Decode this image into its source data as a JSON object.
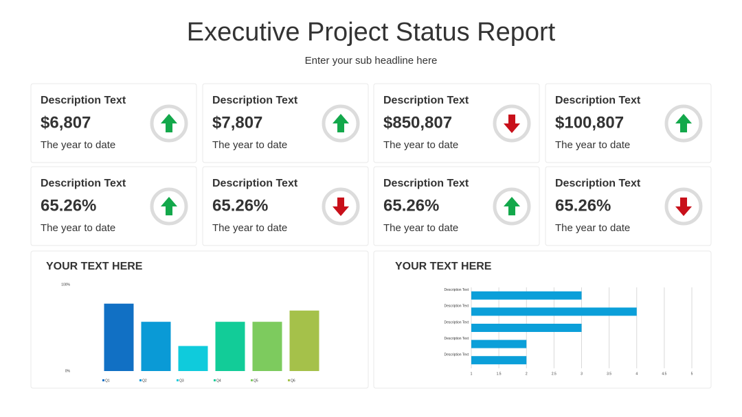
{
  "header": {
    "title": "Executive Project Status Report",
    "subtitle": "Enter your sub headline here"
  },
  "cards": [
    {
      "label": "Description Text",
      "value": "$6,807",
      "caption": "The year to date",
      "trend": "up"
    },
    {
      "label": "Description Text",
      "value": "$7,807",
      "caption": "The year to date",
      "trend": "up"
    },
    {
      "label": "Description Text",
      "value": "$850,807",
      "caption": "The year to date",
      "trend": "down"
    },
    {
      "label": "Description Text",
      "value": "$100,807",
      "caption": "The year to date",
      "trend": "up"
    },
    {
      "label": "Description Text",
      "value": "65.26%",
      "caption": "The year to date",
      "trend": "up"
    },
    {
      "label": "Description Text",
      "value": "65.26%",
      "caption": "The year to date",
      "trend": "down"
    },
    {
      "label": "Description Text",
      "value": "65.26%",
      "caption": "The year to date",
      "trend": "up"
    },
    {
      "label": "Description Text",
      "value": "65.26%",
      "caption": "The year to date",
      "trend": "down"
    }
  ],
  "chart_data": [
    {
      "type": "bar",
      "title": "YOUR TEXT HERE",
      "categories": [
        "Q1",
        "Q2",
        "Q3",
        "Q4",
        "Q5",
        "Q6"
      ],
      "values": [
        78,
        57,
        29,
        57,
        57,
        70
      ],
      "colors": [
        "#1170c4",
        "#0a9ad6",
        "#0fcbdc",
        "#12cc98",
        "#7dcb5e",
        "#a5c14a"
      ],
      "ylim": [
        0,
        100
      ],
      "yticks": [
        {
          "value": 0,
          "label": "0%"
        },
        {
          "value": 100,
          "label": "100%"
        }
      ],
      "grid": false
    },
    {
      "type": "barh",
      "title": "YOUR TEXT HERE",
      "categories": [
        "Description Text",
        "Description Text",
        "Description Text",
        "Description Text",
        "Description Text"
      ],
      "values": [
        3,
        4,
        3,
        2,
        2
      ],
      "color": "#0b9fd9",
      "xlim": [
        1,
        5
      ],
      "xticks": [
        1,
        1.5,
        2,
        2.5,
        3,
        3.5,
        4,
        4.5,
        5
      ],
      "grid": true
    }
  ]
}
